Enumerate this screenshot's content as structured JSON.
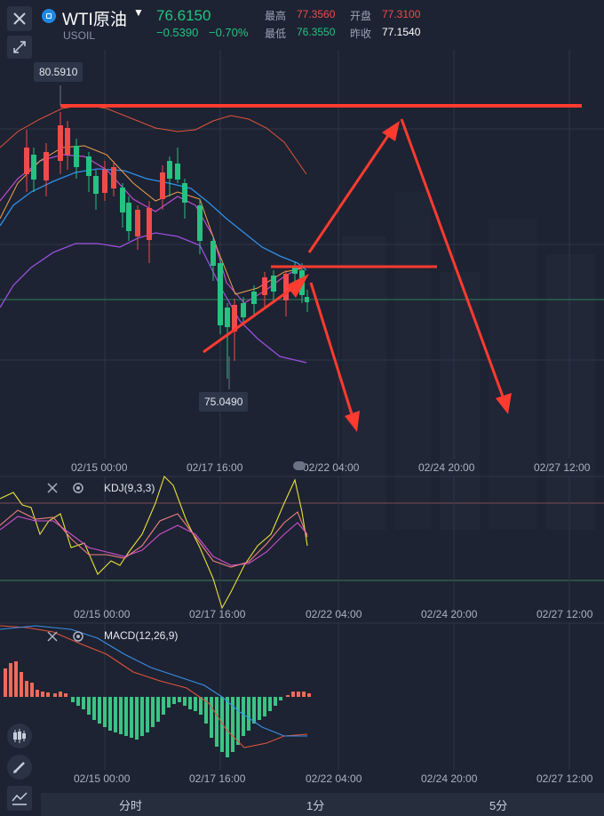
{
  "header": {
    "symbol_name": "WTI原油",
    "symbol_code": "USOIL",
    "last_price": "76.6150",
    "change": "−0.5390",
    "change_pct": "−0.70%",
    "high_label": "最高",
    "high_value": "77.3560",
    "open_label": "开盘",
    "open_value": "77.3100",
    "low_label": "最低",
    "low_value": "76.3550",
    "prev_close_label": "昨收",
    "prev_close_value": "77.1540"
  },
  "main_chart": {
    "max_price_label": "80.5910",
    "min_price_label": "75.0490",
    "x_axis": [
      "02/15 00:00",
      "02/17 16:00",
      "02/22 04:00",
      "02/24 20:00",
      "02/27 12:00"
    ]
  },
  "kdj_panel": {
    "label": "KDJ(9,3,3)",
    "x_axis": [
      "02/15 00:00",
      "02/17 16:00",
      "02/22 04:00",
      "02/24 20:00",
      "02/27 12:00"
    ]
  },
  "macd_panel": {
    "label": "MACD(12,26,9)",
    "x_axis": [
      "02/15 00:00",
      "02/17 16:00",
      "02/22 04:00",
      "02/24 20:00",
      "02/27 12:00"
    ]
  },
  "tabs": [
    "分时",
    "1分",
    "5分"
  ],
  "icons": {
    "close": "close-icon",
    "expand": "expand-icon",
    "symbol": "symbol-icon",
    "candles": "candlestick-icon",
    "pencil": "pencil-icon",
    "indicator": "indicator-icon",
    "settings": "settings-icon"
  },
  "colors": {
    "background": "#1d2332",
    "up": "#ef4b4b",
    "down": "#26c281",
    "annotation": "#ff3b30"
  }
}
